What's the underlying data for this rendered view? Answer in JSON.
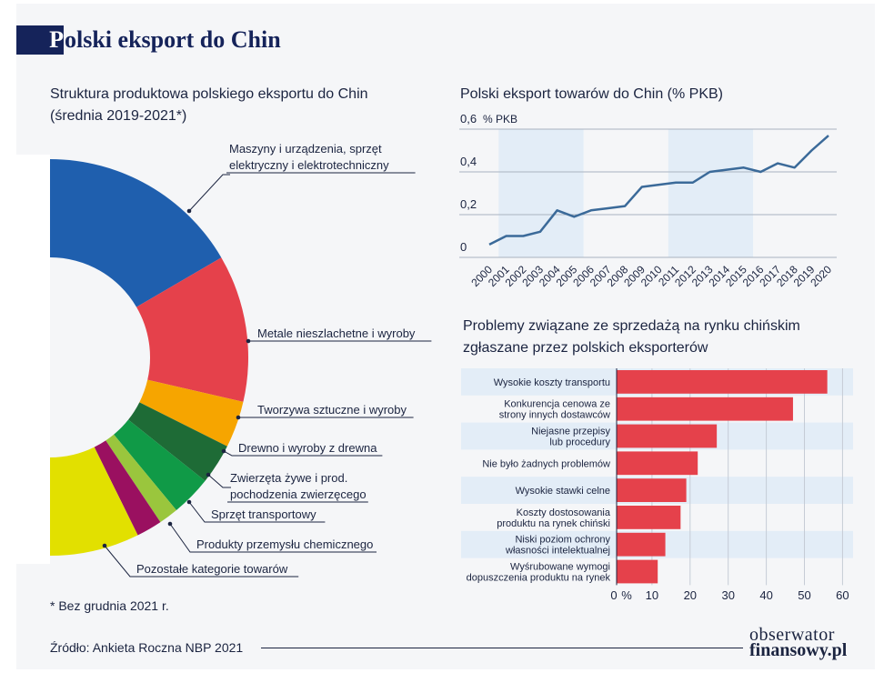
{
  "header": {
    "title_initial": "P",
    "title_rest": "olski eksport do Chin"
  },
  "donut_title": {
    "line1": "Struktura produktowa polskiego eksportu do Chin",
    "line2": "(średnia 2019-2021*)"
  },
  "line_title": "Polski eksport towarów do Chin (% PKB)",
  "bar_title": {
    "line1": "Problemy związane ze sprzedażą na rynku chińskim",
    "line2": "zgłaszane przez polskich eksporterów"
  },
  "footnote": "* Bez grudnia 2021 r.",
  "source": "Źródło: Ankieta Roczna NBP 2021",
  "logo": {
    "line1": "obserwator",
    "line2": "finansowy.pl"
  },
  "colors": {
    "navy": "#15235a",
    "blue": "#1f5fae",
    "red": "#e5414b",
    "orange": "#f6a500",
    "dark_green": "#1e6b36",
    "green": "#109a47",
    "light_green": "#9ac63d",
    "purple": "#9a1060",
    "yellow": "#e2e000",
    "line": "#3b6a99",
    "bar": "#e5414b",
    "band": "#e3edf7"
  },
  "chart_data": [
    {
      "type": "pie",
      "title": "Struktura produktowa polskiego eksportu do Chin (średnia 2019-2021*)",
      "categories": [
        "Maszyny i urządzenia, sprzęt elektryczny i elektrotechniczny",
        "Metale nieszlachetne i wyroby",
        "Tworzywa sztuczne i wyroby",
        "Drewno i wyroby z drewna",
        "Zwierzęta żywe i prod. pochodzenia zwierzęcego",
        "Sprzęt transportowy",
        "Produkty przemysłu chemicznego",
        "Pozostałe kategorie towarów"
      ],
      "values": [
        33.2,
        24,
        7.6,
        6.6,
        6.6,
        3.2,
        4.2,
        14.6
      ],
      "labels": [
        {
          "lines": [
            "Maszyny i urządzenia, sprzęt",
            "elektryczny i elektrotechniczny"
          ]
        },
        {
          "lines": [
            "Metale nieszlachetne i wyroby"
          ]
        },
        {
          "lines": [
            "Tworzywa sztuczne i wyroby"
          ]
        },
        {
          "lines": [
            "Drewno i wyroby z drewna"
          ]
        },
        {
          "lines": [
            "Zwierzęta żywe i prod.",
            "pochodzenia zwierzęcego"
          ]
        },
        {
          "lines": [
            "Sprzęt transportowy"
          ]
        },
        {
          "lines": [
            "Produkty przemysłu chemicznego"
          ]
        },
        {
          "lines": [
            "Pozostałe kategorie towarów"
          ]
        }
      ]
    },
    {
      "type": "line",
      "title": "Polski eksport towarów do Chin (% PKB)",
      "x": [
        "2000",
        "2001",
        "2002",
        "2003",
        "2004",
        "2005",
        "2006",
        "2007",
        "2008",
        "2009",
        "2010",
        "2011",
        "2012",
        "2013",
        "2014",
        "2015",
        "2016",
        "2017",
        "2018",
        "2019",
        "2020"
      ],
      "y": [
        0.06,
        0.1,
        0.1,
        0.12,
        0.22,
        0.19,
        0.22,
        0.23,
        0.24,
        0.33,
        0.34,
        0.35,
        0.35,
        0.4,
        0.41,
        0.42,
        0.4,
        0.44,
        0.42,
        0.5,
        0.57
      ],
      "ylim": [
        0,
        0.6
      ],
      "yticks": [
        "0",
        "0,2",
        "0,4",
        "0,6"
      ],
      "yunit": "% PKB",
      "shaded_ranges": [
        [
          "2001",
          "2005"
        ],
        [
          "2011",
          "2015"
        ]
      ],
      "grid": true
    },
    {
      "type": "bar",
      "orientation": "horizontal",
      "title": "Problemy związane ze sprzedażą na rynku chińskim zgłaszane przez polskich eksporterów",
      "categories": [
        [
          "Wysokie koszty transportu"
        ],
        [
          "Konkurencja cenowa ze",
          "strony innych dostawców"
        ],
        [
          "Niejasne przepisy",
          "lub procedury"
        ],
        [
          "Nie było żadnych problemów"
        ],
        [
          "Wysokie stawki celne"
        ],
        [
          "Koszty dostosowania",
          "produktu na rynek chiński"
        ],
        [
          "Niski poziom ochrony",
          "własności intelektualnej"
        ],
        [
          "Wyśrubowane wymogi",
          "dopuszczenia produktu na rynek"
        ]
      ],
      "values": [
        56,
        47,
        27,
        22,
        19,
        17.5,
        13.5,
        11.5
      ],
      "xlim": [
        0,
        60
      ],
      "xticks": [
        "0",
        "10",
        "20",
        "30",
        "40",
        "50",
        "60"
      ],
      "xunit": "%"
    }
  ]
}
